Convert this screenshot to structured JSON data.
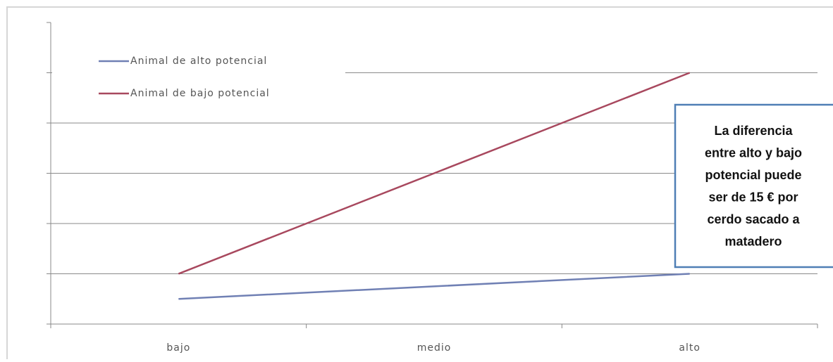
{
  "chart_data": {
    "type": "line",
    "categories": [
      "bajo",
      "medio",
      "alto"
    ],
    "series": [
      {
        "name": "Animal de alto potencial",
        "color": "#7080b4",
        "values": [
          0.5,
          0.75,
          1.0
        ]
      },
      {
        "name": "Animal de bajo potencial",
        "color": "#a8485e",
        "values": [
          1.0,
          3.0,
          5.0
        ]
      }
    ],
    "ylim": [
      0,
      6
    ],
    "yticks": [
      0,
      1,
      2,
      3,
      4,
      5,
      6
    ],
    "grid": true,
    "legend": "top-left",
    "annotation": [
      "La diferencia",
      "entre alto y bajo",
      "potencial puede",
      "ser de 15 € por",
      "cerdo sacado a",
      "matadero"
    ]
  }
}
